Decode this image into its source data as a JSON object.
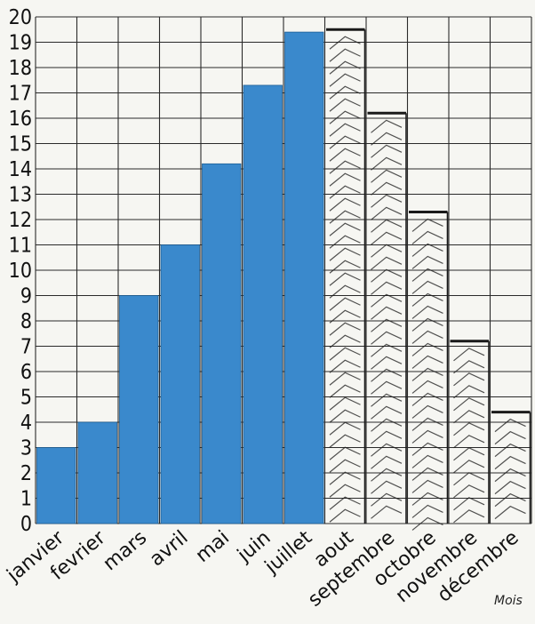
{
  "chart_data": {
    "type": "bar",
    "title": "",
    "xlabel": "Mois",
    "ylabel": "",
    "ylim": [
      0,
      20
    ],
    "grid": true,
    "y_ticks": [
      "0",
      "1",
      "2",
      "3",
      "4",
      "5",
      "6",
      "7",
      "8",
      "9",
      "10",
      "11",
      "12",
      "13",
      "14",
      "15",
      "16",
      "17",
      "18",
      "19",
      "20"
    ],
    "categories": [
      "janvier",
      "fevrier",
      "mars",
      "avril",
      "mai",
      "juin",
      "juillet",
      "aout",
      "septembre",
      "octobre",
      "novembre",
      "décembre"
    ],
    "series": [
      {
        "values": [
          3,
          4,
          9,
          11,
          14.2,
          17.3,
          19.4,
          null,
          null,
          null,
          null,
          null
        ],
        "style": "printed-filled",
        "color": "#3a89cc"
      },
      {
        "values": [
          null,
          null,
          null,
          null,
          null,
          null,
          null,
          19.5,
          16.2,
          12.3,
          7.2,
          4.4
        ],
        "style": "hand-drawn-hatched",
        "color": "#1a1a1a"
      }
    ]
  }
}
